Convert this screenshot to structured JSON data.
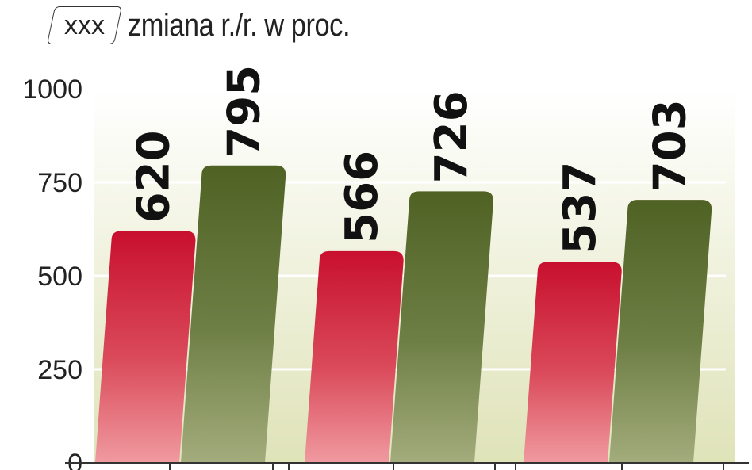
{
  "legend": {
    "marker_text": "xxx",
    "text": "zmiana r./r. w proc."
  },
  "chart_data": {
    "type": "bar",
    "groups": 3,
    "values": [
      620,
      795,
      566,
      726,
      537,
      703
    ],
    "bar_colors": [
      "#c8102e",
      "#556b2f",
      "#c8102e",
      "#556b2f",
      "#c8102e",
      "#556b2f"
    ],
    "y_ticks": [
      "0",
      "250",
      "500",
      "750",
      "1000"
    ],
    "ylim": [
      0,
      1000
    ],
    "grid": true,
    "background_gradient": [
      "#ffffff",
      "#dfe3b8"
    ],
    "title": "",
    "xlabel": "",
    "ylabel": ""
  }
}
